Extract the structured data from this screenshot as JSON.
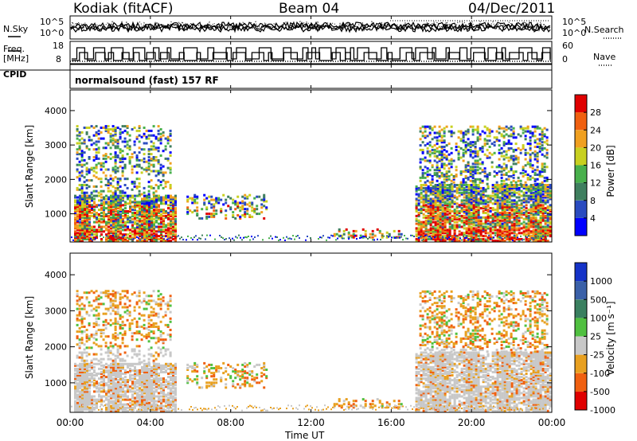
{
  "header": {
    "station": "Kodiak (fitACF)",
    "beam": "Beam 04",
    "date": "04/Dec/2011"
  },
  "strips": {
    "nsky_label": "N.Sky",
    "nsearch_label": "N.Search",
    "freq_label_1": "Freq.",
    "freq_label_2": "[MHz]",
    "nave_label": "Nave",
    "cpid_label": "CPID",
    "cpid_value": "normalsound (fast) 157 RF",
    "noise_ticks_left": [
      "10^5",
      "10^0"
    ],
    "noise_ticks_right": [
      "10^5",
      "10^0"
    ],
    "freq_ticks": [
      "18",
      "8"
    ],
    "nave_ticks": [
      "60",
      "0"
    ]
  },
  "chart_data": [
    {
      "type": "heatmap",
      "title": "",
      "xlabel": "",
      "ylabel": "Slant Range [km]",
      "yticks": [
        "1000",
        "2000",
        "3000",
        "4000"
      ],
      "ylim": [
        180,
        4600
      ],
      "xlim": [
        0,
        24
      ],
      "colorbar": {
        "label": "Power [dB]",
        "ticks": [
          "4",
          "8",
          "12",
          "16",
          "20",
          "24",
          "28"
        ]
      }
    },
    {
      "type": "heatmap",
      "title": "",
      "xlabel": "Time UT",
      "ylabel": "Slant Range [km]",
      "yticks": [
        "1000",
        "2000",
        "3000",
        "4000"
      ],
      "xticks": [
        "00:00",
        "04:00",
        "08:00",
        "12:00",
        "16:00",
        "20:00",
        "00:00"
      ],
      "ylim": [
        180,
        4600
      ],
      "xlim": [
        0,
        24
      ],
      "colorbar": {
        "label": "Velocity [m s⁻¹]",
        "ticks": [
          "1000",
          "500",
          "100",
          "25",
          "-25",
          "-100",
          "-500",
          "-1000"
        ]
      }
    }
  ],
  "colors": {
    "power": [
      "#0000ff",
      "#2a4bc0",
      "#3f7f5f",
      "#48b04c",
      "#c8d020",
      "#f0a020",
      "#f06010",
      "#e00000"
    ],
    "velocity": [
      "#1533c8",
      "#3a60a8",
      "#3a8060",
      "#50c040",
      "#c8c8c8",
      "#e8a020",
      "#f06010",
      "#e00000"
    ]
  }
}
